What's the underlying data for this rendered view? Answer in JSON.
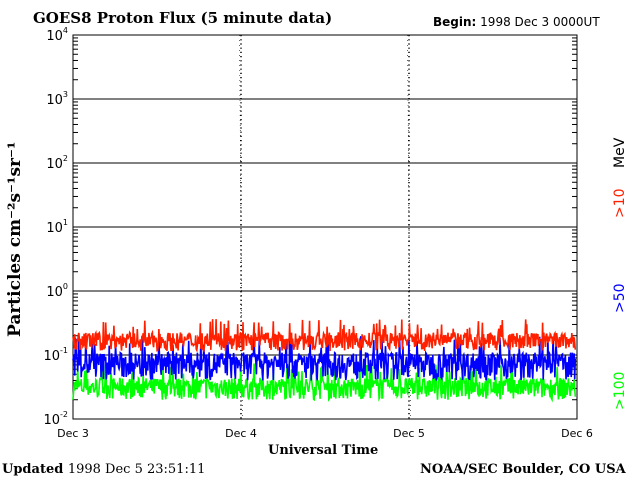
{
  "title": "GOES8 Proton Flux (5 minute data)",
  "begin_label": "Begin:",
  "begin_value": "1998 Dec 3 0000UT",
  "ylabel": "Particles cm⁻²s⁻¹sr⁻¹",
  "xlabel": "Universal Time",
  "updated_label": "Updated",
  "updated_value": "1998 Dec  5 23:51:11",
  "credit": "NOAA/SEC Boulder, CO USA",
  "energy_unit": "MeV",
  "colors": {
    "p10": "#ff2000",
    "p50": "#0000ff",
    "p100": "#00ff00"
  },
  "chart_data": {
    "type": "line",
    "y_scale": "log",
    "ylim": [
      0.01,
      10000
    ],
    "y_ticks": [
      {
        "value": 10000,
        "base": "10",
        "exp": "4"
      },
      {
        "value": 1000,
        "base": "10",
        "exp": "3"
      },
      {
        "value": 100,
        "base": "10",
        "exp": "2"
      },
      {
        "value": 10,
        "base": "10",
        "exp": "1"
      },
      {
        "value": 1,
        "base": "10",
        "exp": "0"
      },
      {
        "value": 0.1,
        "base": "10",
        "exp": "-1"
      },
      {
        "value": 0.01,
        "base": "10",
        "exp": "-2"
      }
    ],
    "x_ticks": [
      {
        "day": 0,
        "label": "Dec 3"
      },
      {
        "day": 1,
        "label": "Dec 4"
      },
      {
        "day": 2,
        "label": "Dec 5"
      },
      {
        "day": 3,
        "label": "Dec 6"
      }
    ],
    "xlim": [
      0,
      3
    ],
    "grid": true,
    "series": [
      {
        "name": ">10",
        "color": "#ff2000",
        "mean": 0.17,
        "spread": 0.055,
        "min": 0.11
      },
      {
        "name": ">50",
        "color": "#0000ff",
        "mean": 0.075,
        "spread": 0.035,
        "min": 0.035
      },
      {
        "name": ">100",
        "color": "#00ff00",
        "mean": 0.032,
        "spread": 0.012,
        "min": 0.02
      }
    ],
    "data_end_day": 2.99
  }
}
